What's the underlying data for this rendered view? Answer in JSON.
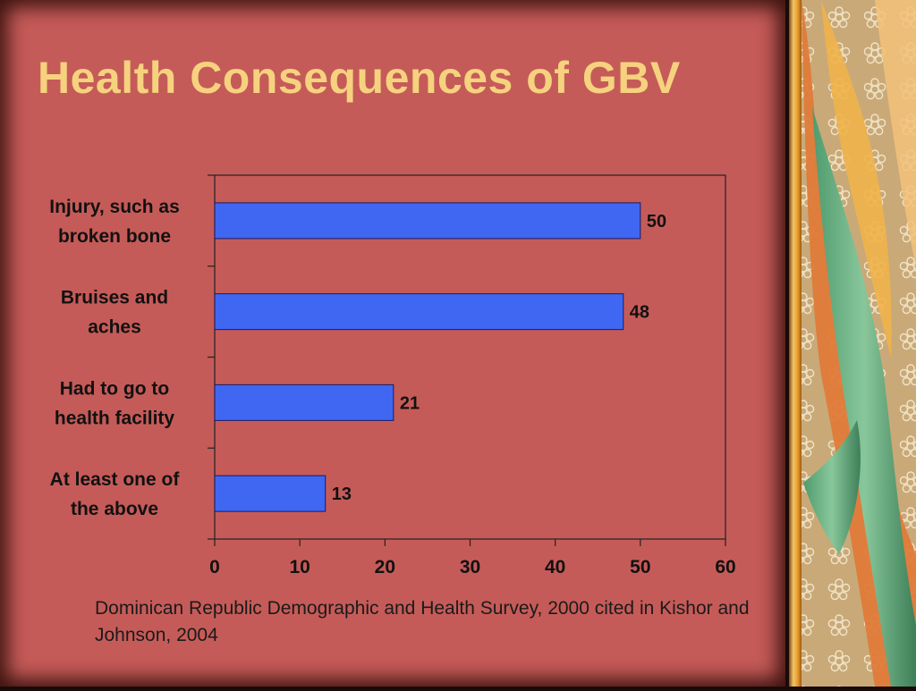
{
  "slide": {
    "title": "Health Consequences of GBV",
    "source_note": "Dominican Republic Demographic and Health Survey, 2000 cited in Kishor and Johnson, 2004"
  },
  "colors": {
    "background": "#c55b58",
    "title": "#f6d27f",
    "bar_fill": "#3f67f2",
    "bar_stroke": "#1a1a60",
    "plot_bg": "#c55b58"
  },
  "chart_data": {
    "type": "bar",
    "orientation": "horizontal",
    "categories": [
      [
        "Injury, such as",
        "broken bone"
      ],
      [
        "Bruises and",
        "aches"
      ],
      [
        "Had to go to",
        "health facility"
      ],
      [
        "At least one of",
        "the above"
      ]
    ],
    "values": [
      50,
      48,
      21,
      13
    ],
    "data_labels": [
      "50",
      "48",
      "21",
      "13"
    ],
    "xlim": [
      0,
      60
    ],
    "xticks": [
      "0",
      "10",
      "20",
      "30",
      "40",
      "50",
      "60"
    ],
    "grid": false,
    "legend": "none",
    "title": "",
    "xlabel": "",
    "ylabel": ""
  }
}
